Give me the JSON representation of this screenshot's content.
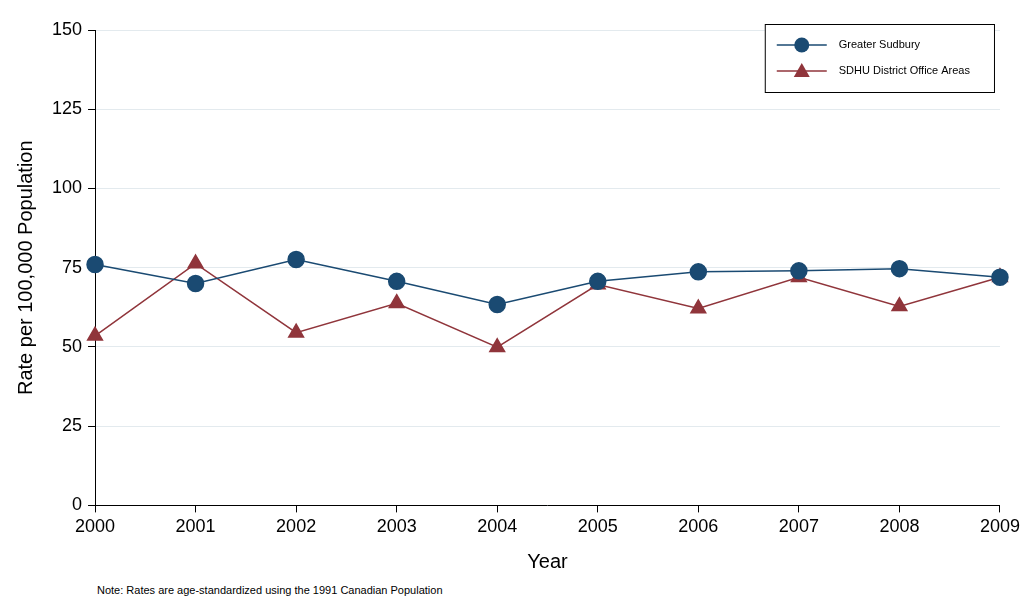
{
  "chart_data": {
    "type": "line",
    "x_label": "Year",
    "y_label": "Rate per 100,000 Population",
    "note": "Note: Rates are age-standardized using the 1991 Canadian Population",
    "x": [
      2000,
      2001,
      2002,
      2003,
      2004,
      2005,
      2006,
      2007,
      2008,
      2009
    ],
    "series": [
      {
        "name": "Greater Sudbury",
        "color": "#1a4a72",
        "marker": "circle",
        "line_style": "solid",
        "values": [
          76.0,
          70.0,
          77.6,
          70.7,
          63.4,
          70.7,
          73.7,
          74.0,
          74.7,
          72.0
        ]
      },
      {
        "name": "SDHU District Office Areas",
        "color": "#90353b",
        "marker": "triangle",
        "line_style": "solid",
        "values": [
          53.5,
          76.3,
          54.5,
          63.8,
          49.9,
          69.7,
          62.1,
          72.0,
          62.8,
          72.0
        ]
      }
    ],
    "xlim": [
      2000,
      2009
    ],
    "xticks": [
      2000,
      2001,
      2002,
      2003,
      2004,
      2005,
      2006,
      2007,
      2008,
      2009
    ],
    "ylim": [
      0,
      150
    ],
    "yticks": [
      0,
      25,
      50,
      75,
      100,
      125,
      150
    ],
    "grid": true,
    "legend": "upper right"
  }
}
